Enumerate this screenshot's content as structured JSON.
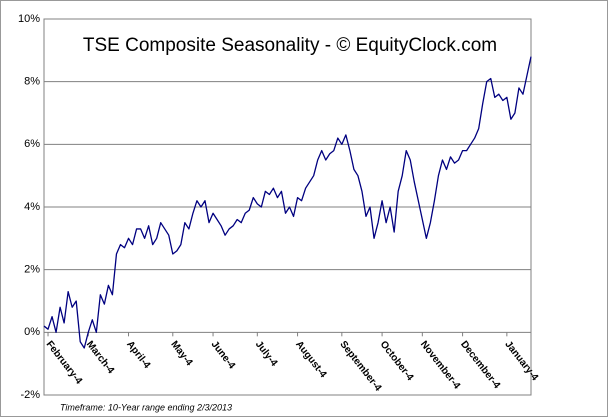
{
  "chart_data": {
    "type": "line",
    "title": "TSE Composite Seasonality - © EquityClock.com",
    "footnote": "Timeframe: 10-Year range ending 2/3/2013",
    "categories": [
      null,
      "February-4",
      null,
      null,
      null,
      null,
      null,
      null,
      null,
      null,
      null,
      "March-4",
      null,
      null,
      null,
      null,
      null,
      null,
      null,
      null,
      null,
      "April-4",
      null,
      null,
      null,
      null,
      null,
      null,
      null,
      null,
      null,
      null,
      "May-4",
      null,
      null,
      null,
      null,
      null,
      null,
      null,
      null,
      null,
      "June-4",
      null,
      null,
      null,
      null,
      null,
      null,
      null,
      null,
      null,
      null,
      "July-4",
      null,
      null,
      null,
      null,
      null,
      null,
      null,
      null,
      null,
      "August-4",
      null,
      null,
      null,
      null,
      null,
      null,
      null,
      null,
      null,
      null,
      "September-4",
      null,
      null,
      null,
      null,
      null,
      null,
      null,
      null,
      null,
      "October-4",
      null,
      null,
      null,
      null,
      null,
      null,
      null,
      null,
      null,
      "November-4",
      null,
      null,
      null,
      null,
      null,
      null,
      null,
      null,
      null,
      "December-4",
      null,
      null,
      null,
      null,
      null,
      null,
      null,
      null,
      null,
      null,
      "January-4",
      null,
      null,
      null,
      null,
      null,
      null
    ],
    "series": [
      {
        "name": "TSE Composite",
        "color": "#000080",
        "values": [
          0.2,
          0.1,
          0.5,
          0.0,
          0.8,
          0.3,
          1.3,
          0.8,
          1.0,
          -0.3,
          -0.5,
          0.0,
          0.4,
          0.0,
          1.2,
          0.9,
          1.5,
          1.2,
          2.5,
          2.8,
          2.7,
          3.0,
          2.8,
          3.3,
          3.3,
          3.0,
          3.4,
          2.8,
          3.0,
          3.5,
          3.3,
          3.1,
          2.5,
          2.6,
          2.8,
          3.5,
          3.3,
          3.8,
          4.2,
          4.0,
          4.2,
          3.5,
          3.8,
          3.6,
          3.4,
          3.1,
          3.3,
          3.4,
          3.6,
          3.5,
          3.8,
          3.9,
          4.3,
          4.1,
          4.0,
          4.5,
          4.4,
          4.6,
          4.3,
          4.5,
          3.8,
          4.0,
          3.7,
          4.3,
          4.2,
          4.6,
          4.8,
          5.0,
          5.5,
          5.8,
          5.5,
          5.7,
          5.8,
          6.2,
          6.0,
          6.3,
          5.8,
          5.2,
          5.0,
          4.5,
          3.7,
          4.0,
          3.0,
          3.5,
          4.2,
          3.5,
          4.0,
          3.2,
          4.5,
          5.0,
          5.8,
          5.5,
          4.8,
          4.2,
          3.6,
          3.0,
          3.5,
          4.2,
          5.0,
          5.5,
          5.2,
          5.6,
          5.4,
          5.5,
          5.8,
          5.8,
          6.0,
          6.2,
          6.5,
          7.3,
          8.0,
          8.1,
          7.5,
          7.6,
          7.4,
          7.5,
          6.8,
          7.0,
          7.8,
          7.6,
          8.2,
          8.8
        ]
      }
    ],
    "ylim": [
      -2,
      10
    ],
    "yticks": [
      {
        "value": -2,
        "label": "-2%"
      },
      {
        "value": 0,
        "label": "0%"
      },
      {
        "value": 2,
        "label": "2%"
      },
      {
        "value": 4,
        "label": "4%"
      },
      {
        "value": 6,
        "label": "6%"
      },
      {
        "value": 8,
        "label": "8%"
      },
      {
        "value": 10,
        "label": "10%"
      }
    ],
    "grid": true
  }
}
